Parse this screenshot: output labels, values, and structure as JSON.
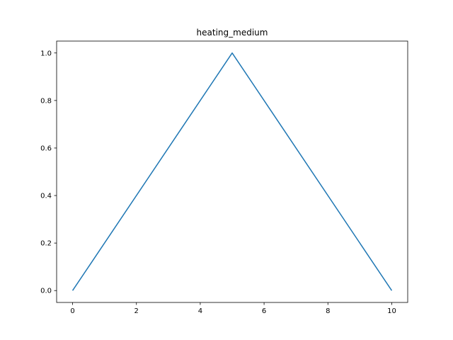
{
  "chart_data": {
    "type": "line",
    "title": "heating_medium",
    "xlabel": "",
    "ylabel": "",
    "xlim": [
      -0.5,
      10.5
    ],
    "ylim": [
      -0.05,
      1.05
    ],
    "x_ticks": [
      0,
      2,
      4,
      6,
      8,
      10
    ],
    "y_ticks": [
      0.0,
      0.2,
      0.4,
      0.6,
      0.8,
      1.0
    ],
    "x_tick_labels": [
      "0",
      "2",
      "4",
      "6",
      "8",
      "10"
    ],
    "y_tick_labels": [
      "0.0",
      "0.2",
      "0.4",
      "0.6",
      "0.8",
      "1.0"
    ],
    "grid": false,
    "series": [
      {
        "x": [
          0,
          5,
          10
        ],
        "y": [
          0.0,
          1.0,
          0.0
        ],
        "color": "#1f77b4"
      }
    ]
  }
}
